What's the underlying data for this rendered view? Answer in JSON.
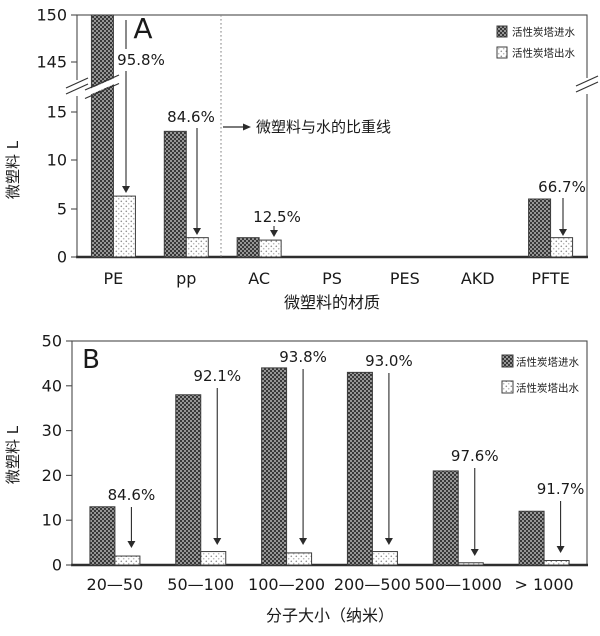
{
  "figure": {
    "description": "Two-panel bar chart figure comparing microplastics in activated carbon tower inlet vs outlet water"
  },
  "legend": {
    "inlet": "活性炭塔进水",
    "outlet": "活性炭塔出水"
  },
  "colors": {
    "inlet_base": "#969696",
    "inlet_dot": "#383838",
    "outlet_bg": "#ffffff",
    "outlet_dot": "#8f8f8f",
    "bar_stroke": "#3d3d3d",
    "axis": "#4a4a4a",
    "axis_bottom": "#2e2e2e",
    "divider": "#8c8c8c",
    "text": "#1a1a1a"
  },
  "chart_data": [
    {
      "id": "A",
      "type": "bar",
      "panel_label": "A",
      "ylabel": "微塑料  L",
      "xlabel": "微塑料的材质",
      "axis_break": true,
      "y_tick_labels": [
        "150",
        "145",
        "15",
        "10",
        "5",
        "0"
      ],
      "ylim_lower": [
        0,
        15
      ],
      "ylim_upper": [
        145,
        150
      ],
      "categories": [
        "PE",
        "pp",
        "AC",
        "PS",
        "PES",
        "AKD",
        "PFTE"
      ],
      "series": [
        {
          "name": "活性炭塔进水",
          "values": [
            150,
            13,
            2,
            0,
            0,
            0,
            6
          ]
        },
        {
          "name": "活性炭塔出水",
          "values": [
            6.3,
            2,
            1.75,
            0,
            0,
            0,
            2
          ]
        }
      ],
      "percent_labels": [
        {
          "category": "PE",
          "text": "95.8%"
        },
        {
          "category": "pp",
          "text": "84.6%"
        },
        {
          "category": "AC",
          "text": "12.5%"
        },
        {
          "category": "PFTE",
          "text": "66.7%"
        }
      ],
      "divider": {
        "label": "微塑料与水的比重线",
        "between": [
          "pp",
          "AC"
        ]
      },
      "legend_position": "top-right"
    },
    {
      "id": "B",
      "type": "bar",
      "panel_label": "B",
      "ylabel": "微塑料  L",
      "xlabel": "分子大小（纳米）",
      "axis_break": false,
      "y_tick_labels": [
        "50",
        "40",
        "30",
        "20",
        "10",
        "0"
      ],
      "ylim": [
        0,
        50
      ],
      "categories": [
        "20—50",
        "50—100",
        "100—200",
        "200—500",
        "500—1000",
        "> 1000"
      ],
      "series": [
        {
          "name": "活性炭塔进水",
          "values": [
            13,
            38,
            44,
            43,
            21,
            12
          ]
        },
        {
          "name": "活性炭塔出水",
          "values": [
            2,
            3,
            2.7,
            3,
            0.5,
            1
          ]
        }
      ],
      "percent_labels": [
        {
          "category": "20—50",
          "text": "84.6%"
        },
        {
          "category": "50—100",
          "text": "92.1%"
        },
        {
          "category": "100—200",
          "text": "93.8%"
        },
        {
          "category": "200—500",
          "text": "93.0%"
        },
        {
          "category": "500—1000",
          "text": "97.6%"
        },
        {
          "category": "> 1000",
          "text": "91.7%"
        }
      ],
      "legend_position": "top-right"
    }
  ]
}
